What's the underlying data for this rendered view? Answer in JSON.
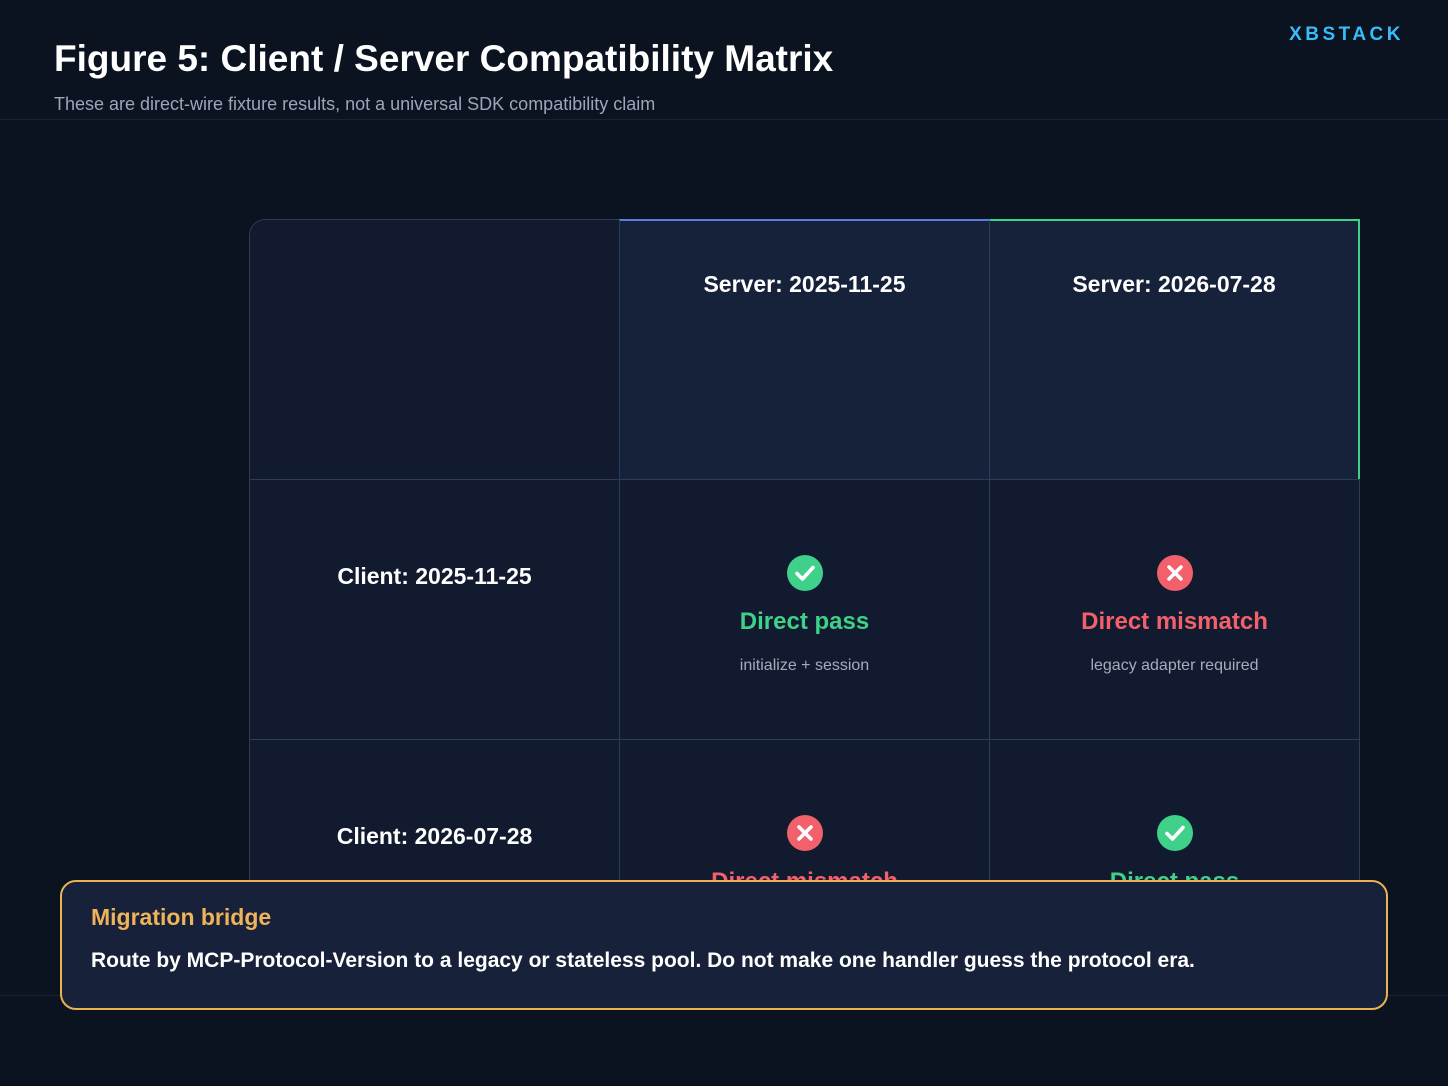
{
  "brand": "XBSTACK",
  "title": "Figure 5: Client / Server Compatibility Matrix",
  "subtitle": "These are direct-wire fixture results, not a universal SDK compatibility claim",
  "colors": {
    "background": "#0b1220",
    "brand": "#38bdf8",
    "pass": "#3fd08a",
    "fail": "#f2606c",
    "callout_border": "#e9b352",
    "server_col_1_accent": "#5b7ce6",
    "server_col_2_accent": "#3fd08a"
  },
  "matrix": {
    "columns": [
      {
        "label": "Server: 2025-11-25"
      },
      {
        "label": "Server: 2026-07-28"
      }
    ],
    "rows": [
      {
        "label": "Client: 2025-11-25",
        "cells": [
          {
            "status": "pass",
            "icon": "check-circle-icon",
            "title": "Direct pass",
            "note": "initialize + session"
          },
          {
            "status": "fail",
            "icon": "x-circle-icon",
            "title": "Direct mismatch",
            "note": "legacy adapter required"
          }
        ]
      },
      {
        "label": "Client: 2026-07-28",
        "cells": [
          {
            "status": "fail",
            "icon": "x-circle-icon",
            "title": "Direct mismatch",
            "note": ""
          },
          {
            "status": "pass",
            "icon": "check-circle-icon",
            "title": "Direct pass",
            "note": ""
          }
        ]
      }
    ]
  },
  "callout": {
    "title": "Migration bridge",
    "text": "Route by MCP-Protocol-Version to a legacy or stateless pool. Do not make one handler guess the protocol era."
  }
}
